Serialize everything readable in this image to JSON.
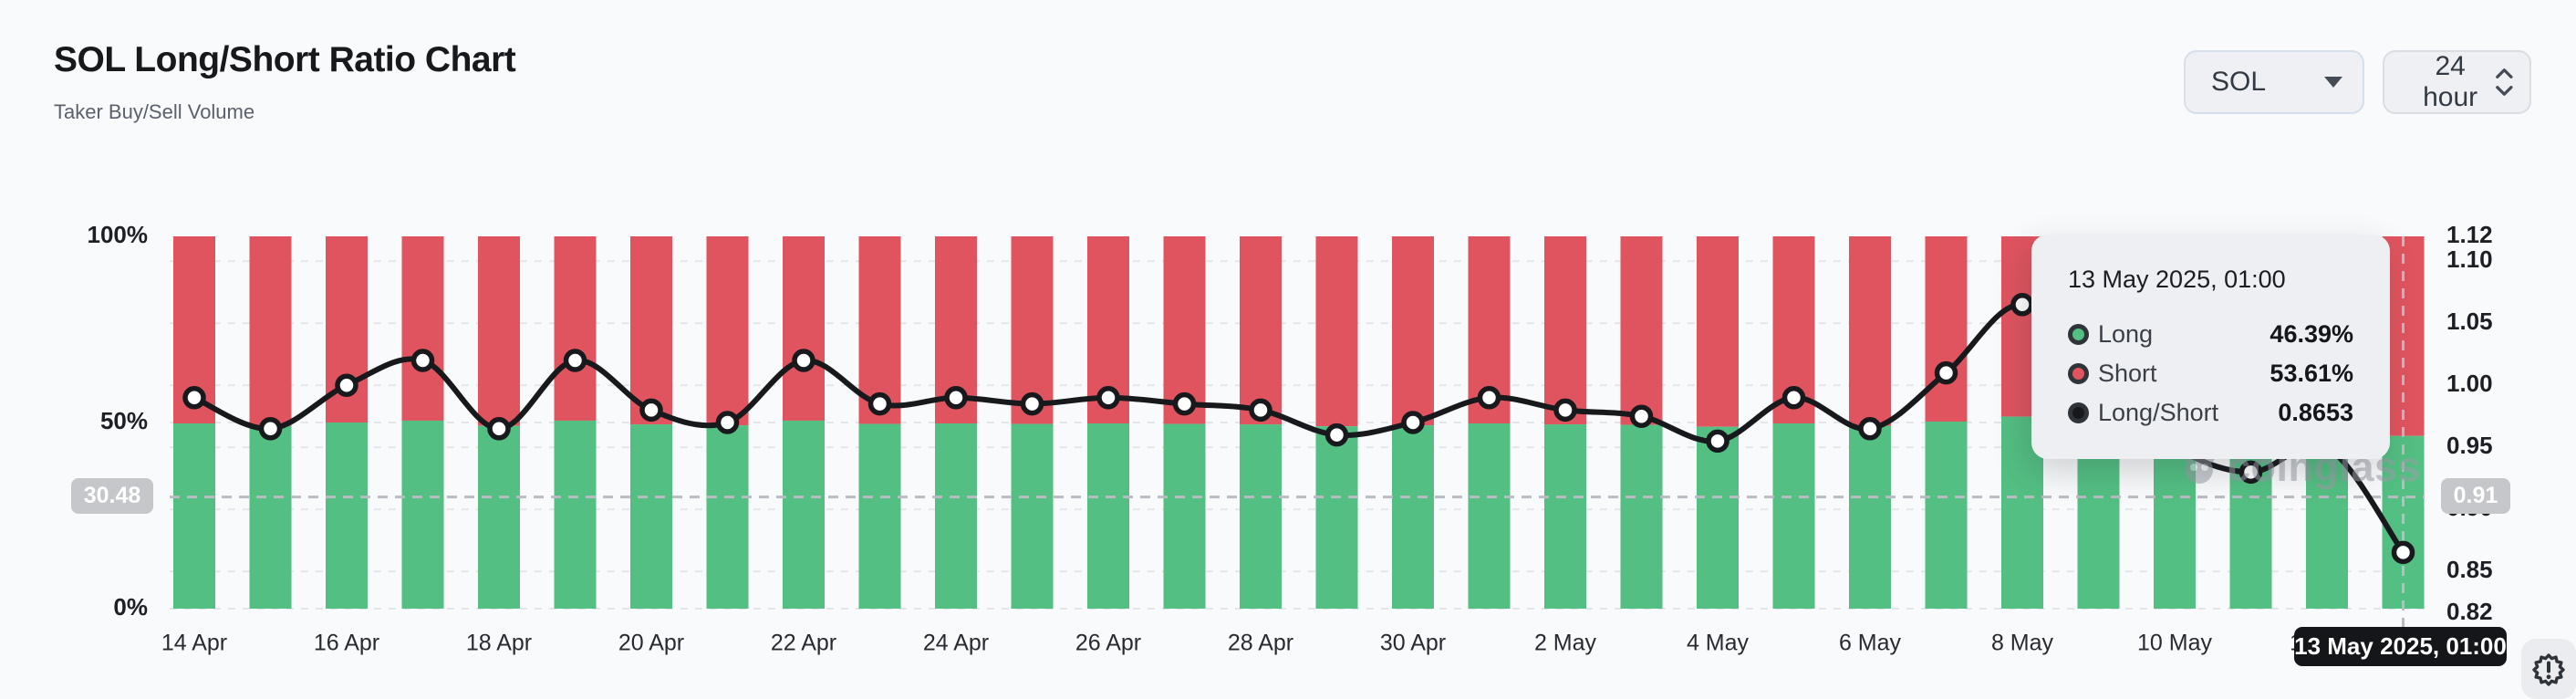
{
  "header": {
    "title": "SOL Long/Short Ratio Chart",
    "subtitle": "Taker Buy/Sell Volume"
  },
  "controls": {
    "coin": "SOL",
    "interval": "24 hour"
  },
  "crosshair": {
    "left_label": "30.48",
    "right_label": "0.91",
    "x_label": "13 May 2025, 01:00"
  },
  "tooltip": {
    "title": "13 May 2025, 01:00",
    "rows": [
      {
        "label": "Long",
        "value": "46.39%",
        "color": "#53bf82"
      },
      {
        "label": "Short",
        "value": "53.61%",
        "color": "#e0545f"
      },
      {
        "label": "Long/Short",
        "value": "0.8653",
        "color": "#17191c"
      }
    ]
  },
  "watermark": "coinglass",
  "colors": {
    "long": "#53bf82",
    "short": "#e0545f",
    "line": "#17191c",
    "grid": "#e3e5e9",
    "crosshair": "#b9bcc2",
    "axis_text": "#1c1f24",
    "tick_text": "#272b31"
  },
  "chart_data": {
    "type": "bar+line (stacked % bars with ratio line)",
    "title": "SOL Long/Short Ratio Chart",
    "categories": [
      "14 Apr",
      "15 Apr",
      "16 Apr",
      "17 Apr",
      "18 Apr",
      "19 Apr",
      "20 Apr",
      "21 Apr",
      "22 Apr",
      "23 Apr",
      "24 Apr",
      "25 Apr",
      "26 Apr",
      "27 Apr",
      "28 Apr",
      "29 Apr",
      "30 Apr",
      "1 May",
      "2 May",
      "3 May",
      "4 May",
      "5 May",
      "6 May",
      "7 May",
      "8 May",
      "9 May",
      "10 May",
      "11 May",
      "12 May",
      "13 May"
    ],
    "series": [
      {
        "name": "Long",
        "type": "bar",
        "axis": "left",
        "unit": "%",
        "values": [
          49.75,
          49.11,
          50.0,
          50.5,
          49.11,
          50.5,
          49.49,
          49.24,
          50.5,
          49.62,
          49.75,
          49.62,
          49.75,
          49.62,
          49.49,
          48.98,
          49.24,
          49.75,
          49.49,
          49.37,
          48.85,
          49.75,
          49.11,
          50.25,
          51.57,
          50.0,
          48.72,
          48.19,
          48.72,
          46.39
        ]
      },
      {
        "name": "Short",
        "type": "bar",
        "axis": "left",
        "unit": "%",
        "values": [
          50.25,
          50.89,
          50.0,
          49.5,
          50.89,
          49.5,
          50.51,
          50.76,
          49.5,
          50.38,
          50.25,
          50.38,
          50.25,
          50.38,
          50.51,
          51.02,
          50.76,
          50.25,
          50.51,
          50.63,
          51.15,
          50.25,
          50.89,
          49.75,
          48.43,
          50.0,
          51.28,
          51.81,
          51.28,
          53.61
        ]
      },
      {
        "name": "Long/Short",
        "type": "line",
        "axis": "right",
        "values": [
          0.99,
          0.965,
          1.0,
          1.02,
          0.965,
          1.02,
          0.98,
          0.97,
          1.02,
          0.985,
          0.99,
          0.985,
          0.99,
          0.985,
          0.98,
          0.96,
          0.97,
          0.99,
          0.98,
          0.975,
          0.955,
          0.99,
          0.965,
          1.01,
          1.065,
          1.0,
          0.95,
          0.93,
          0.95,
          0.8653
        ]
      }
    ],
    "x_tick_labels": [
      "14 Apr",
      "16 Apr",
      "18 Apr",
      "20 Apr",
      "22 Apr",
      "24 Apr",
      "26 Apr",
      "28 Apr",
      "30 Apr",
      "2 May",
      "4 May",
      "6 May",
      "8 May",
      "10 May",
      "12 May"
    ],
    "left_axis": {
      "ticks": [
        "100%",
        "50%",
        "0%"
      ],
      "range": [
        0,
        100
      ]
    },
    "right_axis": {
      "ticks": [
        1.12,
        1.1,
        1.05,
        1.0,
        0.95,
        0.9,
        0.85,
        0.82
      ],
      "range": [
        0.82,
        1.12
      ]
    },
    "legend": "none",
    "grid": "dashed horizontal",
    "highlighted_point": {
      "category": "13 May",
      "time": "01:00",
      "long_pct": 46.39,
      "short_pct": 53.61,
      "ratio": 0.8653
    }
  }
}
